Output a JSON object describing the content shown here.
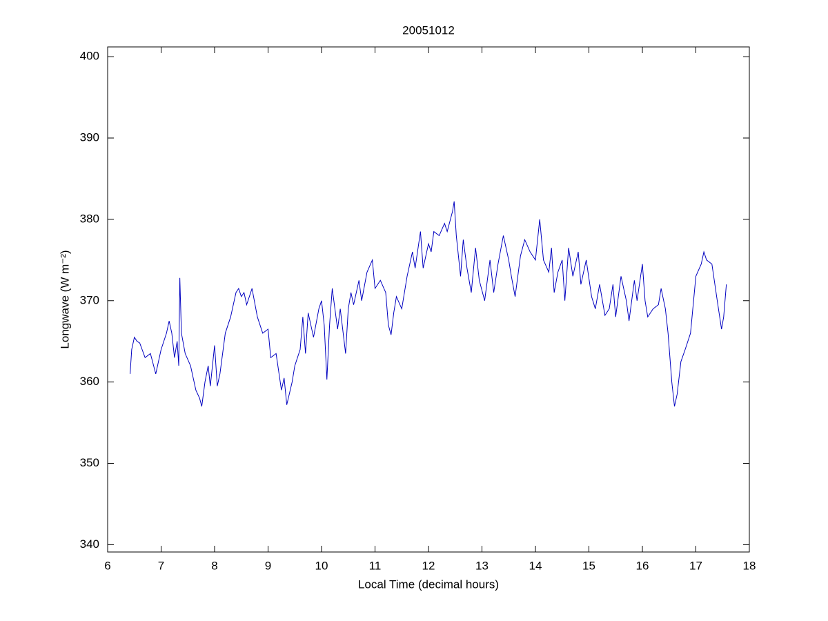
{
  "chart_data": {
    "type": "line",
    "title": "20051012",
    "xlabel": "Local Time (decimal hours)",
    "ylabel": "Longwave (W m⁻²)",
    "color": "#0000c0",
    "x": [
      6.42,
      6.45,
      6.5,
      6.55,
      6.6,
      6.7,
      6.8,
      6.9,
      7.0,
      7.1,
      7.15,
      7.2,
      7.25,
      7.3,
      7.33,
      7.35,
      7.38,
      7.45,
      7.55,
      7.65,
      7.72,
      7.76,
      7.82,
      7.88,
      7.92,
      8.0,
      8.05,
      8.1,
      8.2,
      8.3,
      8.4,
      8.45,
      8.5,
      8.55,
      8.6,
      8.7,
      8.8,
      8.9,
      9.0,
      9.05,
      9.15,
      9.25,
      9.3,
      9.35,
      9.45,
      9.5,
      9.6,
      9.65,
      9.7,
      9.75,
      9.85,
      9.95,
      10.0,
      10.05,
      10.1,
      10.15,
      10.2,
      10.3,
      10.35,
      10.45,
      10.5,
      10.55,
      10.6,
      10.7,
      10.75,
      10.85,
      10.95,
      11.0,
      11.1,
      11.2,
      11.25,
      11.3,
      11.35,
      11.4,
      11.5,
      11.6,
      11.7,
      11.75,
      11.85,
      11.9,
      12.0,
      12.05,
      12.1,
      12.2,
      12.3,
      12.35,
      12.45,
      12.48,
      12.52,
      12.6,
      12.65,
      12.72,
      12.8,
      12.88,
      12.95,
      13.05,
      13.15,
      13.22,
      13.3,
      13.4,
      13.5,
      13.55,
      13.62,
      13.72,
      13.8,
      13.9,
      14.0,
      14.08,
      14.15,
      14.25,
      14.3,
      14.35,
      14.42,
      14.5,
      14.55,
      14.62,
      14.7,
      14.8,
      14.85,
      14.95,
      15.05,
      15.12,
      15.2,
      15.3,
      15.38,
      15.45,
      15.5,
      15.6,
      15.7,
      15.75,
      15.85,
      15.9,
      16.0,
      16.05,
      16.1,
      16.2,
      16.3,
      16.35,
      16.43,
      16.48,
      16.55,
      16.6,
      16.65,
      16.72,
      16.8,
      16.9,
      17.0,
      17.1,
      17.15,
      17.2,
      17.3,
      17.4,
      17.48,
      17.52,
      17.57
    ],
    "values": [
      361,
      364,
      365.5,
      365,
      364.8,
      363,
      363.5,
      361,
      364,
      366,
      367.5,
      366,
      363,
      365,
      362,
      372.8,
      366,
      363.5,
      362,
      359,
      358,
      357,
      360,
      362,
      359.5,
      364.5,
      359.5,
      361,
      366,
      368,
      371,
      371.5,
      370.5,
      371,
      369.5,
      371.5,
      368,
      366,
      366.5,
      363,
      363.5,
      359,
      360.5,
      357.2,
      360,
      362,
      364,
      368,
      363.5,
      368.5,
      365.5,
      369,
      370,
      367,
      360.3,
      367,
      371.5,
      366.5,
      369,
      363.5,
      369,
      371,
      369.5,
      372.5,
      370,
      373.5,
      375,
      371.5,
      372.5,
      371,
      367,
      365.8,
      368.5,
      370.5,
      369,
      373,
      376,
      374,
      378.5,
      374,
      377,
      376,
      378.5,
      378,
      379.5,
      378.5,
      381,
      382.2,
      378,
      373,
      377.5,
      374,
      371,
      376.5,
      372.5,
      370,
      375,
      371,
      374.5,
      378,
      375,
      373,
      370.5,
      375.5,
      377.5,
      376,
      375,
      380,
      375,
      373.5,
      376.5,
      371,
      373.5,
      375,
      370,
      376.5,
      373,
      376,
      372,
      375,
      370.5,
      369,
      372,
      368.2,
      369,
      372,
      368,
      373,
      370,
      367.5,
      372.5,
      370,
      374.5,
      370,
      368,
      369,
      369.5,
      371.5,
      369,
      366,
      360,
      357,
      358.5,
      362.5,
      364,
      366,
      373,
      374.5,
      376,
      375,
      374.5,
      370,
      366.5,
      368,
      372
    ],
    "xlim": [
      6,
      18
    ],
    "xticks": [
      6,
      7,
      8,
      9,
      10,
      11,
      12,
      13,
      14,
      15,
      16,
      17,
      18
    ],
    "ylim": [
      339.1,
      401.2
    ],
    "yticks": [
      340,
      350,
      360,
      370,
      380,
      390,
      400
    ]
  }
}
